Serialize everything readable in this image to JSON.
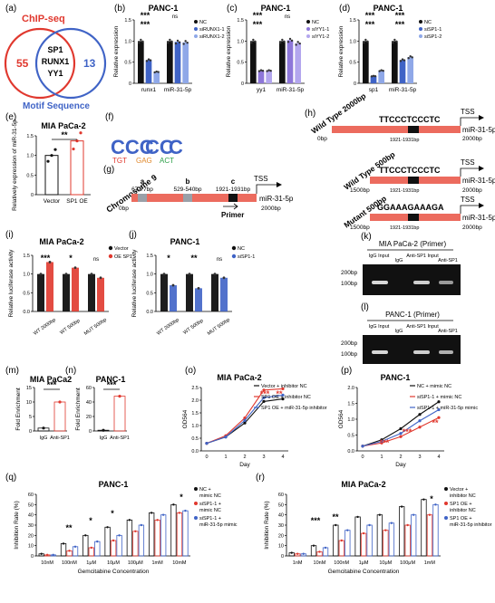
{
  "colors": {
    "black": "#111111",
    "blue": "#3f63c6",
    "lightblue": "#8fa8e8",
    "midblue": "#6b86d8",
    "purple": "#8e77d9",
    "lavender": "#b3a6ee",
    "red": "#e0382e",
    "chipseq": "#e0382e",
    "motif": "#3f63c6",
    "dna": "#ec6b5e",
    "grey": "#9aa0a8"
  },
  "panels": {
    "a": {
      "label": "(a)",
      "chip_label": "ChIP-seq",
      "motif_label": "Motif Sequence",
      "left_count": "55",
      "right_count": "13",
      "center_items": [
        "SP1",
        "RUNX1",
        "YY1"
      ]
    },
    "b": {
      "label": "(b)",
      "title": "PANC-1",
      "ylabel": "Relative expression",
      "categories": [
        "runx1",
        "miR-31-5p"
      ],
      "legend": [
        "NC",
        "siRUNX1-1",
        "siRUNX1-2"
      ],
      "ylim": [
        0,
        1.5
      ],
      "yticks": [
        "0",
        "0.5",
        "1.0",
        "1.5"
      ],
      "sig": [
        "***",
        "***",
        "ns"
      ]
    },
    "c": {
      "label": "(c)",
      "title": "PANC-1",
      "ylabel": "Relative expression",
      "categories": [
        "yy1",
        "miR-31-5p"
      ],
      "legend": [
        "NC",
        "siYY1-1",
        "siYY1-2"
      ],
      "ylim": [
        0,
        1.5
      ],
      "yticks": [
        "0",
        "0.5",
        "1.0",
        "1.5"
      ],
      "sig": [
        "***",
        "***",
        "ns"
      ]
    },
    "d": {
      "label": "(d)",
      "title": "PANC-1",
      "ylabel": "Relative expression",
      "categories": [
        "sp1",
        "miR-31-5p"
      ],
      "legend": [
        "NC",
        "siSP1-1",
        "siSP1-2"
      ],
      "ylim": [
        0,
        1.5
      ],
      "yticks": [
        "0",
        "0.5",
        "1.0",
        "1.5"
      ],
      "sig": [
        "***",
        "***",
        "***",
        "***"
      ]
    },
    "e": {
      "label": "(e)",
      "title": "MIA PaCa-2",
      "ylabel": "Relatively expression of miR-31-5p",
      "categories": [
        "Vector",
        "SP1 OE"
      ],
      "ylim": [
        0,
        1.5
      ],
      "yticks": [
        "0",
        "0.5",
        "1.0",
        "1.5"
      ],
      "sig": "**"
    },
    "f": {
      "label": "(f)"
    },
    "g": {
      "label": "(g)",
      "chrom": "Chromosome 9",
      "start": "0bp",
      "end": "2000bp",
      "tss": "TSS",
      "mir": "miR-31-5p",
      "primer": "Primer",
      "sites": [
        {
          "id": "a",
          "range": "67-77bp"
        },
        {
          "id": "b",
          "range": "529-540bp"
        },
        {
          "id": "c",
          "range": "1921-1931bp"
        }
      ]
    },
    "h": {
      "label": "(h)",
      "rows": [
        {
          "name": "Wild Type 2000bp",
          "seq": "TTCCCTCCCTC",
          "start": "0bp",
          "end": "2000bp",
          "range": "1921-1931bp"
        },
        {
          "name": "Wild Type 500bp",
          "seq": "TTCCCTCCCTC",
          "start": "1500bp",
          "end": "2000bp",
          "range": "1921-1931bp"
        },
        {
          "name": "Mutant 500bp",
          "seq": "GGAAAGAAAGA",
          "start": "1500bp",
          "end": "2000bp",
          "range": "1921-1931bp"
        }
      ],
      "tss": "TSS",
      "mir": "miR-31-5p"
    },
    "i": {
      "label": "(i)",
      "title": "MIA PaCa-2",
      "ylabel": "Relative luciferase activity",
      "categories": [
        "WT 2000bp",
        "WT 500bp",
        "MUT 500bp"
      ],
      "legend": [
        "Vector",
        "OE SP1"
      ],
      "ylim": [
        0,
        1.5
      ],
      "yticks": [
        "0.0",
        "0.5",
        "1.0",
        "1.5"
      ],
      "sig": [
        "***",
        "*",
        "ns"
      ]
    },
    "j": {
      "label": "(j)",
      "title": "PANC-1",
      "ylabel": "Relative luciferase activity",
      "categories": [
        "WT 2000bp",
        "WT 500bp",
        "MUT 500bp"
      ],
      "legend": [
        "NC",
        "siSP1-1"
      ],
      "ylim": [
        0,
        1.5
      ],
      "yticks": [
        "0.0",
        "0.5",
        "1.0",
        "1.5"
      ],
      "sig": [
        "*",
        "**",
        "ns"
      ]
    },
    "k": {
      "label": "(k)",
      "title": "MIA PaCa-2 (Primer)",
      "lanes": [
        "IgG Input",
        "IgG",
        "Anti-SP1 Input",
        "Anti-SP1"
      ],
      "markers": [
        "200bp",
        "100bp"
      ]
    },
    "l": {
      "label": "(l)",
      "title": "PANC-1 (Primer)",
      "lanes": [
        "IgG Input",
        "IgG",
        "Anti-SP1 Input",
        "Anti-SP1"
      ],
      "markers": [
        "200bp",
        "100bp"
      ]
    },
    "m": {
      "label": "(m)",
      "title": "MIA PaCa2",
      "ylabel": "Fold Enrichment",
      "categories": [
        "IgG",
        "Anti-SP1"
      ],
      "ylim": [
        0,
        15
      ],
      "yticks": [
        "0",
        "5",
        "10",
        "15"
      ],
      "sig": "***"
    },
    "n": {
      "label": "(n)",
      "title": "PANC-1",
      "ylabel": "Fold Enrichment",
      "categories": [
        "IgG",
        "Anti-SP1"
      ],
      "ylim": [
        0,
        60
      ],
      "yticks": [
        "0",
        "20",
        "40",
        "60"
      ],
      "sig": "***"
    },
    "o": {
      "label": "(o)",
      "title": "MIA PaCa-2",
      "ylabel": "OD564",
      "xlabel": "Day",
      "xticks": [
        "0",
        "1",
        "2",
        "3",
        "4"
      ],
      "yticks": [
        "0.0",
        "0.5",
        "1.0",
        "1.5",
        "2.0",
        "2.5"
      ],
      "legend": [
        "Vector + inhibitor NC",
        "SP1 OE + inhibitor NC",
        "SP1 OE + miR-31-5p inhibitor"
      ],
      "sig": [
        "***",
        "**"
      ]
    },
    "p": {
      "label": "(p)",
      "title": "PANC-1",
      "ylabel": "OD564",
      "xlabel": "Day",
      "xticks": [
        "0",
        "1",
        "2",
        "3",
        "4"
      ],
      "yticks": [
        "0.0",
        "0.5",
        "1.0",
        "1.5",
        "2.0"
      ],
      "legend": [
        "NC + mimic NC",
        "siSP1-1 + mimic NC",
        "siSP1-1 + miR-31-5p mimic"
      ],
      "sig": [
        "***",
        "***",
        "**"
      ]
    },
    "q": {
      "label": "(q)",
      "title": "PANC-1",
      "ylabel": "Inhibition Rate (%)",
      "xlabel": "Gemcitabine Concentration",
      "categories": [
        "10nM",
        "100nM",
        "1μM",
        "10μM",
        "100μM",
        "1mM",
        "10mM"
      ],
      "yticks": [
        "0",
        "10",
        "20",
        "30",
        "40",
        "50",
        "60"
      ],
      "legend": [
        "NC + mimic NC",
        "siSP1-1 + mimic NC",
        "siSP1-1 + miR-31-5p mimic"
      ],
      "sig": [
        "**",
        "*",
        "*",
        "*"
      ]
    },
    "r": {
      "label": "(r)",
      "title": "MIA PaCa-2",
      "ylabel": "Inhibition Rate (%)",
      "xlabel": "Gemcitabine Concentration",
      "categories": [
        "1nM",
        "10nM",
        "100nM",
        "1μM",
        "10μM",
        "100μM",
        "1mM"
      ],
      "yticks": [
        "0",
        "10",
        "20",
        "30",
        "40",
        "50",
        "60"
      ],
      "legend": [
        "Vector + inhibitor NC",
        "SP1 OE + inhibitor NC",
        "SP1 OE + miR-31-5p inhibitor"
      ],
      "sig": [
        "***",
        "**",
        "*"
      ]
    }
  },
  "chart_data": [
    {
      "panel": "b",
      "type": "bar",
      "categories": [
        "runx1",
        "miR-31-5p"
      ],
      "series": [
        {
          "name": "NC",
          "values": [
            1.0,
            1.0
          ]
        },
        {
          "name": "siRUNX1-1",
          "values": [
            0.55,
            0.98
          ]
        },
        {
          "name": "siRUNX1-2",
          "values": [
            0.27,
            0.97
          ]
        }
      ],
      "ylim": [
        0,
        1.5
      ]
    },
    {
      "panel": "c",
      "type": "bar",
      "categories": [
        "yy1",
        "miR-31-5p"
      ],
      "series": [
        {
          "name": "NC",
          "values": [
            1.0,
            1.0
          ]
        },
        {
          "name": "siYY1-1",
          "values": [
            0.3,
            1.02
          ]
        },
        {
          "name": "siYY1-2",
          "values": [
            0.3,
            0.95
          ]
        }
      ],
      "ylim": [
        0,
        1.5
      ]
    },
    {
      "panel": "d",
      "type": "bar",
      "categories": [
        "sp1",
        "miR-31-5p"
      ],
      "series": [
        {
          "name": "NC",
          "values": [
            1.0,
            1.0
          ]
        },
        {
          "name": "siSP1-1",
          "values": [
            0.17,
            0.55
          ]
        },
        {
          "name": "siSP1-2",
          "values": [
            0.3,
            0.62
          ]
        }
      ],
      "ylim": [
        0,
        1.5
      ]
    },
    {
      "panel": "e",
      "type": "bar",
      "categories": [
        "Vector",
        "SP1 OE"
      ],
      "values": [
        1.0,
        1.37
      ],
      "ylim": [
        0,
        1.5
      ]
    },
    {
      "panel": "i",
      "type": "bar",
      "categories": [
        "WT 2000bp",
        "WT 500bp",
        "MUT 500bp"
      ],
      "series": [
        {
          "name": "Vector",
          "values": [
            1.0,
            1.0,
            1.0
          ]
        },
        {
          "name": "OE SP1",
          "values": [
            1.32,
            1.17,
            0.9
          ]
        }
      ],
      "ylim": [
        0,
        1.5
      ]
    },
    {
      "panel": "j",
      "type": "bar",
      "categories": [
        "WT 2000bp",
        "WT 500bp",
        "MUT 500bp"
      ],
      "series": [
        {
          "name": "NC",
          "values": [
            1.0,
            1.0,
            1.0
          ]
        },
        {
          "name": "siSP1-1",
          "values": [
            0.7,
            0.62,
            0.9
          ]
        }
      ],
      "ylim": [
        0,
        1.5
      ]
    },
    {
      "panel": "m",
      "type": "bar",
      "categories": [
        "IgG",
        "Anti-SP1"
      ],
      "values": [
        1.0,
        10.0
      ],
      "ylim": [
        0,
        15
      ]
    },
    {
      "panel": "n",
      "type": "bar",
      "categories": [
        "IgG",
        "Anti-SP1"
      ],
      "values": [
        1.0,
        48.0
      ],
      "ylim": [
        0,
        60
      ]
    },
    {
      "panel": "o",
      "type": "line",
      "x": [
        0,
        1,
        2,
        3,
        4
      ],
      "series": [
        {
          "name": "Vector + inhibitor NC",
          "values": [
            0.3,
            0.55,
            1.1,
            1.95,
            2.05
          ]
        },
        {
          "name": "SP1 OE + inhibitor NC",
          "values": [
            0.3,
            0.6,
            1.3,
            2.4,
            2.45
          ]
        },
        {
          "name": "SP1 OE + miR-31-5p inhibitor",
          "values": [
            0.3,
            0.55,
            1.2,
            2.1,
            2.2
          ]
        }
      ],
      "ylim": [
        0,
        2.5
      ]
    },
    {
      "panel": "p",
      "type": "line",
      "x": [
        0,
        1,
        2,
        3,
        4
      ],
      "series": [
        {
          "name": "NC + mimic NC",
          "values": [
            0.15,
            0.35,
            0.7,
            1.15,
            1.55
          ]
        },
        {
          "name": "siSP1-1 + mimic NC",
          "values": [
            0.15,
            0.25,
            0.45,
            0.75,
            1.05
          ]
        },
        {
          "name": "siSP1-1 + miR-31-5p mimic",
          "values": [
            0.15,
            0.3,
            0.55,
            0.95,
            1.3
          ]
        }
      ],
      "ylim": [
        0,
        2.0
      ]
    },
    {
      "panel": "q",
      "type": "bar",
      "categories": [
        "10nM",
        "100nM",
        "1μM",
        "10μM",
        "100μM",
        "1mM",
        "10mM"
      ],
      "series": [
        {
          "name": "NC + mimic NC",
          "values": [
            2,
            12,
            20,
            28,
            35,
            42,
            50
          ]
        },
        {
          "name": "siSP1-1 + mimic NC",
          "values": [
            1,
            5,
            8,
            15,
            24,
            35,
            42
          ]
        },
        {
          "name": "siSP1-1 + miR-31-5p mimic",
          "values": [
            1,
            9,
            14,
            20,
            30,
            40,
            44
          ]
        }
      ],
      "ylim": [
        0,
        60
      ]
    },
    {
      "panel": "r",
      "type": "bar",
      "categories": [
        "1nM",
        "10nM",
        "100nM",
        "1μM",
        "10μM",
        "100μM",
        "1mM"
      ],
      "series": [
        {
          "name": "Vector + inhibitor NC",
          "values": [
            3,
            10,
            30,
            38,
            40,
            48,
            55
          ]
        },
        {
          "name": "SP1 OE + inhibitor NC",
          "values": [
            2,
            4,
            15,
            22,
            25,
            30,
            40
          ]
        },
        {
          "name": "SP1 OE + miR-31-5p inhibitor",
          "values": [
            2,
            8,
            25,
            30,
            32,
            40,
            50
          ]
        }
      ],
      "ylim": [
        0,
        60
      ]
    }
  ]
}
